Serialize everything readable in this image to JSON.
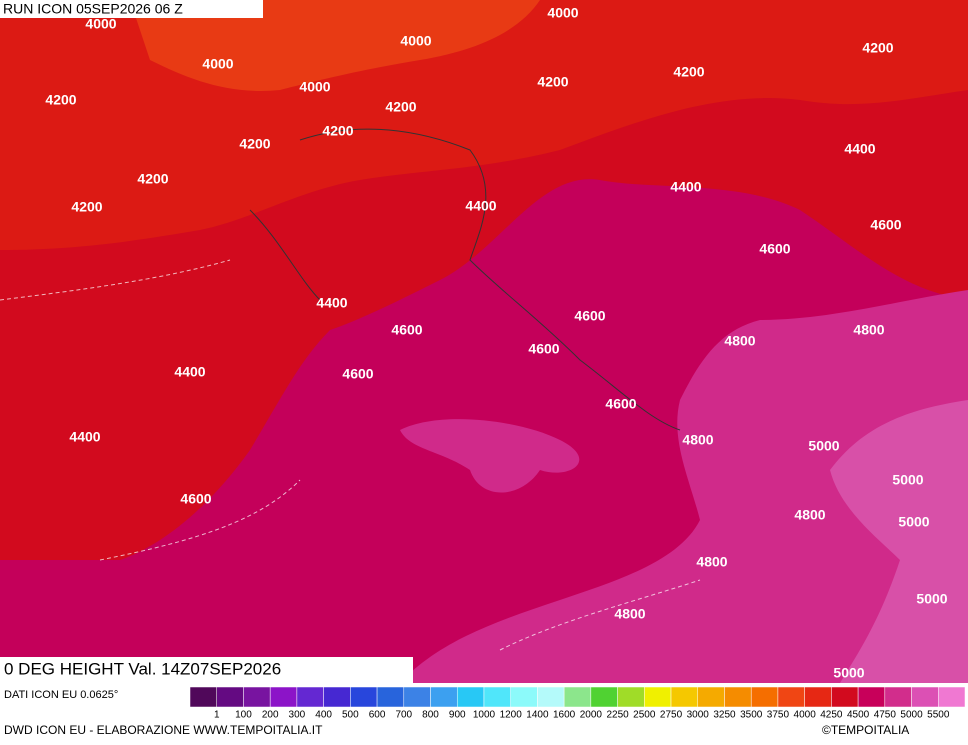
{
  "header": {
    "run": "RUN ICON 05SEP2026 06 Z",
    "field": "0 DEG HEIGHT Val. 14Z07SEP2026"
  },
  "contour_labels": [
    "4000",
    "4000",
    "4000",
    "4000",
    "4000",
    "4200",
    "4200",
    "4200",
    "4200",
    "4200",
    "4200",
    "4200",
    "4200",
    "4200",
    "4400",
    "4400",
    "4400",
    "4400",
    "4400",
    "4400",
    "4600",
    "4600",
    "4600",
    "4600",
    "4600",
    "4600",
    "4600",
    "4600",
    "4800",
    "4800",
    "4800",
    "4800",
    "4800",
    "4800",
    "5000",
    "5000",
    "5000",
    "5000",
    "5000"
  ],
  "legend": {
    "source": "DATI ICON EU 0.0625°",
    "levels": [
      1,
      100,
      200,
      300,
      400,
      500,
      600,
      700,
      800,
      900,
      1000,
      1200,
      1400,
      1600,
      2000,
      2250,
      2500,
      2750,
      3000,
      3250,
      3500,
      3750,
      4000,
      4250,
      4500,
      4750,
      5000,
      5500
    ],
    "colors": [
      "#50085a",
      "#640a82",
      "#7814a0",
      "#8c14c8",
      "#6428d2",
      "#4628d2",
      "#2846dc",
      "#2864dc",
      "#3c82e6",
      "#3ca0f0",
      "#28c8f5",
      "#50e6fa",
      "#8cfafa",
      "#b4fafa",
      "#8ce68c",
      "#50d232",
      "#a0dc28",
      "#f0f000",
      "#f5c800",
      "#f5aa00",
      "#f58c00",
      "#f56e00",
      "#f04614",
      "#e62814",
      "#d20a1e",
      "#c8005a",
      "#d22d8c",
      "#dc50b4",
      "#f078d2"
    ]
  },
  "footer": {
    "credit": "DWD ICON EU - ELABORAZIONE WWW.TEMPOITALIA.IT",
    "copyright": "©TEMPOITALIA"
  }
}
